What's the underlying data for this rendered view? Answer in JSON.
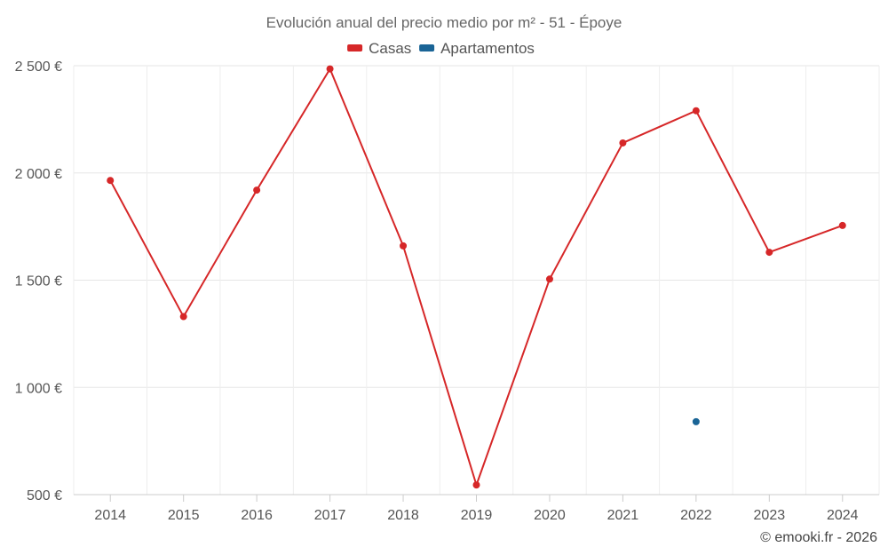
{
  "chart_data": {
    "type": "line",
    "title": "Evolución anual del precio medio por m² - 51 - Époye",
    "categories": [
      "2014",
      "2015",
      "2016",
      "2017",
      "2018",
      "2019",
      "2020",
      "2021",
      "2022",
      "2023",
      "2024"
    ],
    "series": [
      {
        "name": "Casas",
        "color": "#d62728",
        "values": [
          1965,
          1330,
          1920,
          2485,
          1660,
          545,
          1505,
          2140,
          2290,
          1630,
          1755
        ]
      },
      {
        "name": "Apartamentos",
        "color": "#1a6496",
        "values": [
          null,
          null,
          null,
          null,
          null,
          null,
          null,
          null,
          840,
          null,
          null
        ]
      }
    ],
    "ylim": [
      500,
      2500
    ],
    "yticks": [
      500,
      1000,
      1500,
      2000,
      2500
    ],
    "ytick_labels": [
      "500 €",
      "1 000 €",
      "1 500 €",
      "2 000 €",
      "2 500 €"
    ],
    "xlabel": "",
    "ylabel": "",
    "grid": true,
    "legend_position": "top-center"
  },
  "credit": "© emooki.fr - 2026"
}
